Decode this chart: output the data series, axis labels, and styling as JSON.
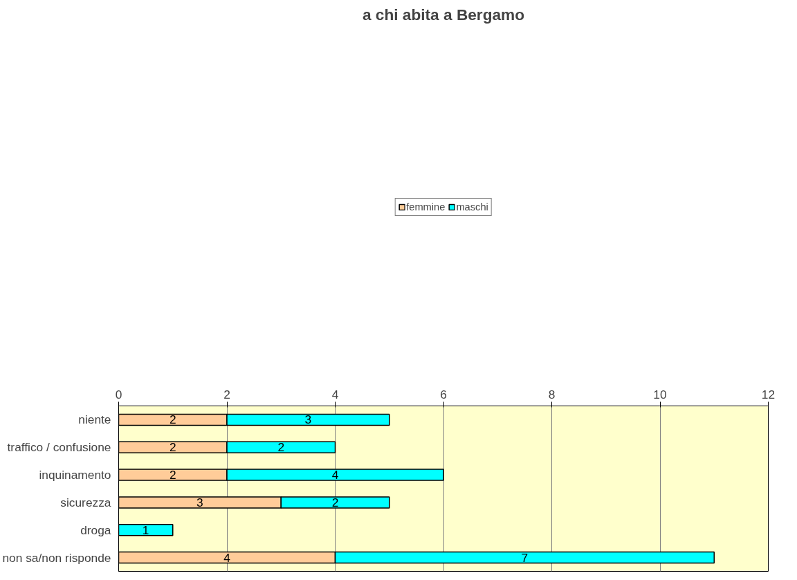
{
  "chart_data": {
    "type": "bar",
    "orientation": "horizontal",
    "stacked": true,
    "title": "a chi abita a Bergamo",
    "categories": [
      "niente",
      "traffico / confusione",
      "inquinamento",
      "sicurezza",
      "droga",
      "non sa/non risponde"
    ],
    "series": [
      {
        "name": "femmine",
        "color": "#ffcc99",
        "values": [
          2,
          2,
          2,
          3,
          null,
          4
        ]
      },
      {
        "name": "maschi",
        "color": "#00ffff",
        "values": [
          3,
          2,
          4,
          2,
          1,
          7
        ]
      }
    ],
    "xlim": [
      0,
      12
    ],
    "xticks": [
      0,
      2,
      4,
      6,
      8,
      10,
      12
    ],
    "grid": "x",
    "legend": "top",
    "data_labels": true
  }
}
